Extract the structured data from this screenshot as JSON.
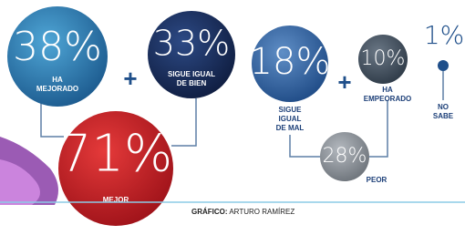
{
  "nodes": [
    {
      "value": "38%",
      "label": [
        "HA",
        "MEJORADO"
      ]
    },
    {
      "value": "33%",
      "label": [
        "SIGUE IGUAL",
        "DE BIEN"
      ]
    },
    {
      "value": "71%",
      "label": [
        "MEJOR"
      ]
    },
    {
      "value": "18%",
      "label": [
        "SIGUE",
        "IGUAL",
        "DE MAL"
      ]
    },
    {
      "value": "10%",
      "label": [
        "HA",
        "EMPEORADO"
      ]
    },
    {
      "value": "28%",
      "label": [
        "PEOR"
      ]
    },
    {
      "value": "1%",
      "label": [
        "NO",
        "SABE"
      ]
    }
  ],
  "credit": {
    "prefix": "GRÁFICO:",
    "name": " ARTURO RAMÍREZ"
  }
}
